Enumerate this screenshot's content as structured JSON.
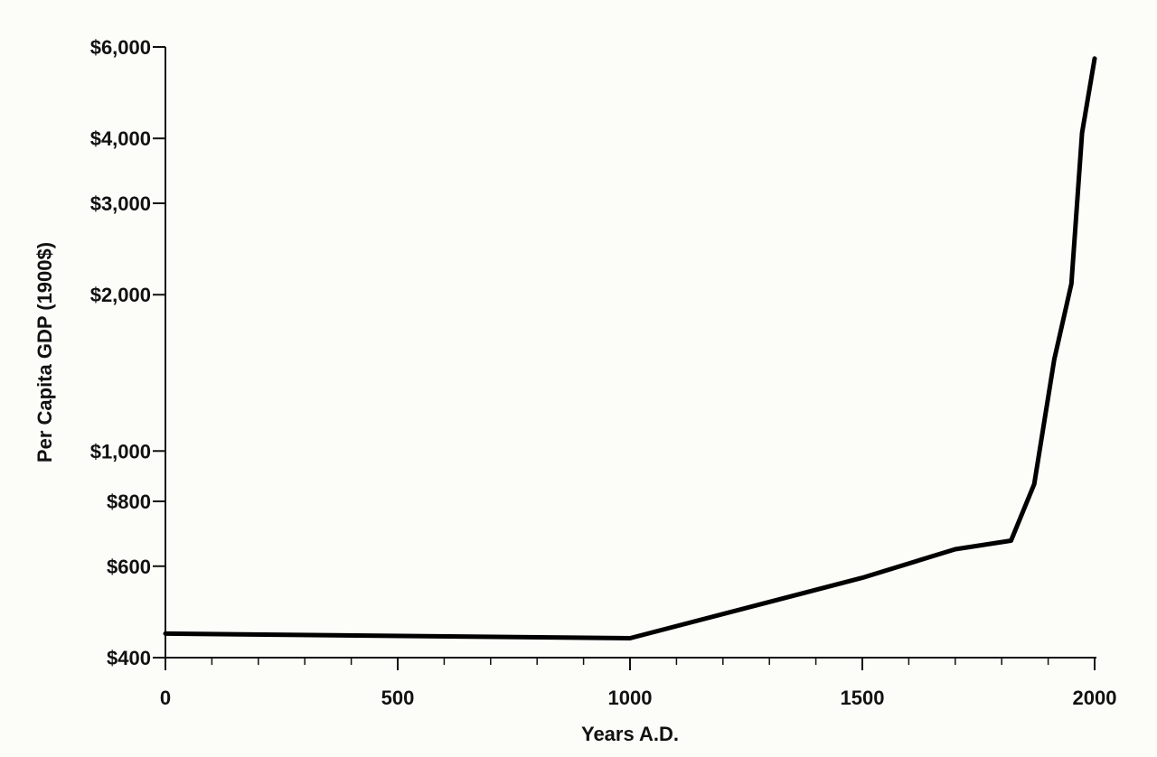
{
  "chart_data": {
    "type": "line",
    "xlabel": "Years A.D.",
    "ylabel": "Per Capita GDP (1900$)",
    "yscale": "log",
    "xlim": [
      0,
      2000
    ],
    "ylim": [
      400,
      6000
    ],
    "x_ticks": [
      {
        "value": 0,
        "label": "0"
      },
      {
        "value": 500,
        "label": "500"
      },
      {
        "value": 1000,
        "label": "1000"
      },
      {
        "value": 1500,
        "label": "1500"
      },
      {
        "value": 2000,
        "label": "2000"
      }
    ],
    "x_minor_step": 100,
    "y_ticks": [
      {
        "value": 400,
        "label": "$400"
      },
      {
        "value": 600,
        "label": "$600"
      },
      {
        "value": 800,
        "label": "$800"
      },
      {
        "value": 1000,
        "label": "$1,000"
      },
      {
        "value": 2000,
        "label": "$2,000"
      },
      {
        "value": 3000,
        "label": "$3,000"
      },
      {
        "value": 4000,
        "label": "$4,000"
      },
      {
        "value": 6000,
        "label": "$6,000"
      }
    ],
    "grid": false,
    "line_color": "#000000",
    "series": [
      {
        "x": [
          0,
          1000,
          1500,
          1700,
          1820,
          1870,
          1913,
          1950,
          1973,
          2000
        ],
        "y": [
          445,
          436,
          570,
          647,
          672,
          864,
          1500,
          2100,
          4100,
          5700
        ]
      }
    ]
  }
}
